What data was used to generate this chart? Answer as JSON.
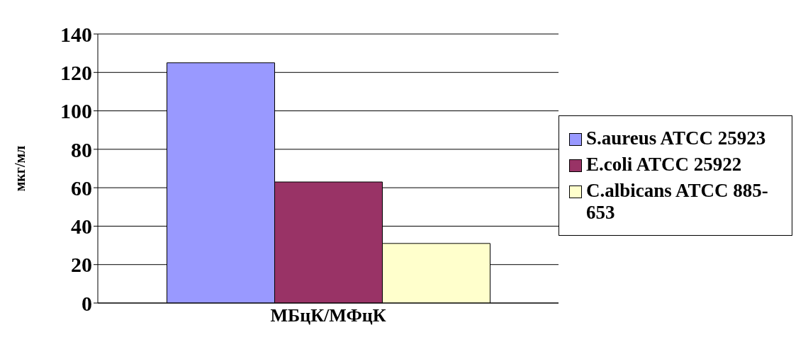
{
  "chart_data": {
    "type": "bar",
    "categories": [
      "МБцК/МФцК"
    ],
    "ylabel": "мкг/мл",
    "series": [
      {
        "name": "S.aureus ATCC 25923",
        "color": "#9999ff",
        "values": [
          125
        ]
      },
      {
        "name": "E.coli ATCC 25922",
        "color": "#993366",
        "values": [
          63
        ]
      },
      {
        "name": "C.albicans ATCC 885-653",
        "color": "#ffffcc",
        "values": [
          31
        ]
      }
    ],
    "ylim": [
      0,
      140
    ],
    "yticks": [
      0,
      20,
      40,
      60,
      80,
      100,
      120,
      140
    ],
    "grid": "y",
    "legend": "right"
  }
}
